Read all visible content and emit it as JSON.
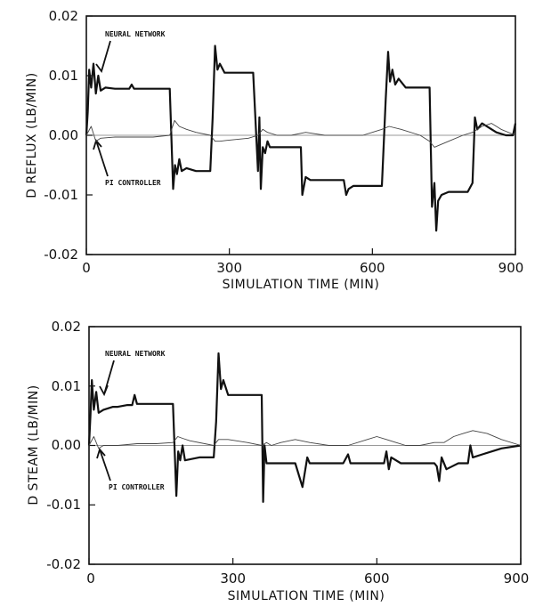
{
  "chart_data": [
    {
      "type": "line",
      "xlabel": "SIMULATION TIME (MIN)",
      "ylabel": "D REFLUX (LB/MIN)",
      "xlim": [
        0,
        900
      ],
      "ylim": [
        -0.02,
        0.02
      ],
      "xticks": [
        0,
        300,
        600,
        900
      ],
      "xtick_labels": [
        "0",
        "300",
        "600",
        "900"
      ],
      "yticks": [
        -0.02,
        -0.01,
        0.0,
        0.01,
        0.02
      ],
      "ytick_labels": [
        "-0.02",
        "-0.01",
        "0.00",
        "0.01",
        "0.02"
      ],
      "grid": false,
      "annotations": [
        "NEURAL NETWORK",
        "PI CONTROLLER"
      ],
      "series": [
        {
          "name": "NEURAL NETWORK",
          "x": [
            0,
            3,
            6,
            10,
            15,
            20,
            25,
            30,
            40,
            60,
            80,
            90,
            95,
            100,
            110,
            140,
            175,
            182,
            186,
            190,
            195,
            200,
            210,
            230,
            260,
            265,
            270,
            275,
            280,
            290,
            300,
            320,
            350,
            360,
            363,
            366,
            370,
            375,
            380,
            385,
            390,
            420,
            440,
            450,
            453,
            460,
            470,
            500,
            540,
            545,
            550,
            560,
            580,
            600,
            620,
            628,
            633,
            637,
            642,
            648,
            655,
            670,
            700,
            720,
            725,
            730,
            734,
            738,
            745,
            760,
            800,
            810,
            815,
            820,
            830,
            860,
            880,
            895,
            900
          ],
          "y": [
            0.0,
            0.004,
            0.011,
            0.008,
            0.012,
            0.007,
            0.01,
            0.0075,
            0.008,
            0.0078,
            0.0078,
            0.0078,
            0.0085,
            0.0078,
            0.0078,
            0.0078,
            0.0078,
            -0.009,
            -0.005,
            -0.0065,
            -0.004,
            -0.006,
            -0.0055,
            -0.006,
            -0.006,
            0.003,
            0.015,
            0.011,
            0.012,
            0.0105,
            0.0105,
            0.0105,
            0.0105,
            -0.006,
            0.003,
            -0.009,
            -0.002,
            -0.003,
            -0.001,
            -0.002,
            -0.002,
            -0.002,
            -0.002,
            -0.002,
            -0.01,
            -0.007,
            -0.0075,
            -0.0075,
            -0.0075,
            -0.01,
            -0.009,
            -0.0085,
            -0.0085,
            -0.0085,
            -0.0085,
            0.006,
            0.014,
            0.009,
            0.011,
            0.0085,
            0.0095,
            0.008,
            0.008,
            0.008,
            -0.012,
            -0.008,
            -0.016,
            -0.011,
            -0.01,
            -0.0095,
            -0.0095,
            -0.008,
            0.003,
            0.001,
            0.002,
            0.0005,
            0.0,
            0.0,
            0.002
          ]
        },
        {
          "name": "PI CONTROLLER",
          "x": [
            0,
            10,
            20,
            30,
            60,
            100,
            140,
            175,
            185,
            195,
            210,
            230,
            260,
            270,
            280,
            300,
            340,
            360,
            370,
            380,
            400,
            430,
            460,
            500,
            540,
            580,
            600,
            620,
            635,
            660,
            700,
            720,
            730,
            745,
            760,
            790,
            810,
            830,
            850,
            870,
            900
          ],
          "y": [
            0.0,
            0.0015,
            -0.001,
            -0.0005,
            -0.0003,
            -0.0003,
            -0.0003,
            0.0,
            0.0025,
            0.0015,
            0.001,
            0.0005,
            0.0,
            -0.001,
            -0.001,
            -0.0008,
            -0.0005,
            0.0,
            0.001,
            0.0005,
            0.0,
            0.0,
            0.0005,
            0.0,
            0.0,
            0.0,
            0.0005,
            0.001,
            0.0015,
            0.001,
            0.0,
            -0.001,
            -0.002,
            -0.0015,
            -0.001,
            0.0,
            0.0005,
            0.0015,
            0.002,
            0.001,
            0.0
          ]
        }
      ]
    },
    {
      "type": "line",
      "xlabel": "SIMULATION TIME (MIN)",
      "ylabel": "D STEAM (LB/MIN)",
      "xlim": [
        0,
        900
      ],
      "ylim": [
        -0.02,
        0.02
      ],
      "xticks": [
        0,
        300,
        600,
        900
      ],
      "xtick_labels": [
        "0",
        "300",
        "600",
        "900"
      ],
      "yticks": [
        -0.02,
        -0.01,
        0.0,
        0.01,
        0.02
      ],
      "ytick_labels": [
        "-0.02",
        "-0.01",
        "0.00",
        "0.01",
        "0.02"
      ],
      "grid": false,
      "annotations": [
        "NEURAL NETWORK",
        "PI CONTROLLER"
      ],
      "series": [
        {
          "name": "NEURAL NETWORK",
          "x": [
            0,
            3,
            6,
            10,
            15,
            20,
            30,
            50,
            60,
            80,
            90,
            95,
            100,
            110,
            140,
            175,
            182,
            186,
            190,
            195,
            200,
            230,
            260,
            265,
            270,
            275,
            280,
            290,
            300,
            320,
            360,
            363,
            366,
            370,
            380,
            400,
            430,
            445,
            450,
            455,
            460,
            480,
            530,
            540,
            545,
            550,
            600,
            615,
            620,
            625,
            630,
            650,
            700,
            720,
            725,
            730,
            735,
            745,
            770,
            790,
            795,
            800,
            820,
            860,
            900
          ],
          "y": [
            0.0,
            0.005,
            0.011,
            0.006,
            0.009,
            0.0055,
            0.006,
            0.0065,
            0.0065,
            0.0068,
            0.0068,
            0.0085,
            0.007,
            0.007,
            0.007,
            0.007,
            -0.0085,
            -0.001,
            -0.0025,
            0.0,
            -0.0025,
            -0.002,
            -0.002,
            0.004,
            0.0155,
            0.0095,
            0.011,
            0.0085,
            0.0085,
            0.0085,
            0.0085,
            -0.0095,
            0.0,
            -0.003,
            -0.003,
            -0.003,
            -0.003,
            -0.007,
            -0.0045,
            -0.002,
            -0.003,
            -0.003,
            -0.003,
            -0.0015,
            -0.003,
            -0.003,
            -0.003,
            -0.003,
            -0.001,
            -0.004,
            -0.002,
            -0.003,
            -0.003,
            -0.003,
            -0.0035,
            -0.006,
            -0.002,
            -0.004,
            -0.003,
            -0.003,
            0.0,
            -0.002,
            -0.0015,
            -0.0005,
            0.0
          ]
        },
        {
          "name": "PI CONTROLLER",
          "x": [
            0,
            10,
            20,
            30,
            60,
            100,
            140,
            175,
            185,
            195,
            210,
            260,
            270,
            290,
            330,
            360,
            370,
            380,
            400,
            430,
            460,
            500,
            540,
            580,
            600,
            620,
            640,
            660,
            690,
            720,
            740,
            760,
            780,
            800,
            830,
            860,
            900
          ],
          "y": [
            0.0,
            0.0015,
            -0.0005,
            0.0,
            0.0,
            0.0003,
            0.0003,
            0.0005,
            0.0015,
            0.0012,
            0.0008,
            0.0,
            0.001,
            0.001,
            0.0005,
            0.0,
            0.0005,
            0.0,
            0.0005,
            0.001,
            0.0005,
            0.0,
            0.0,
            0.001,
            0.0015,
            0.001,
            0.0005,
            0.0,
            0.0,
            0.0005,
            0.0005,
            0.0015,
            0.002,
            0.0025,
            0.002,
            0.001,
            0.0
          ]
        }
      ]
    }
  ]
}
